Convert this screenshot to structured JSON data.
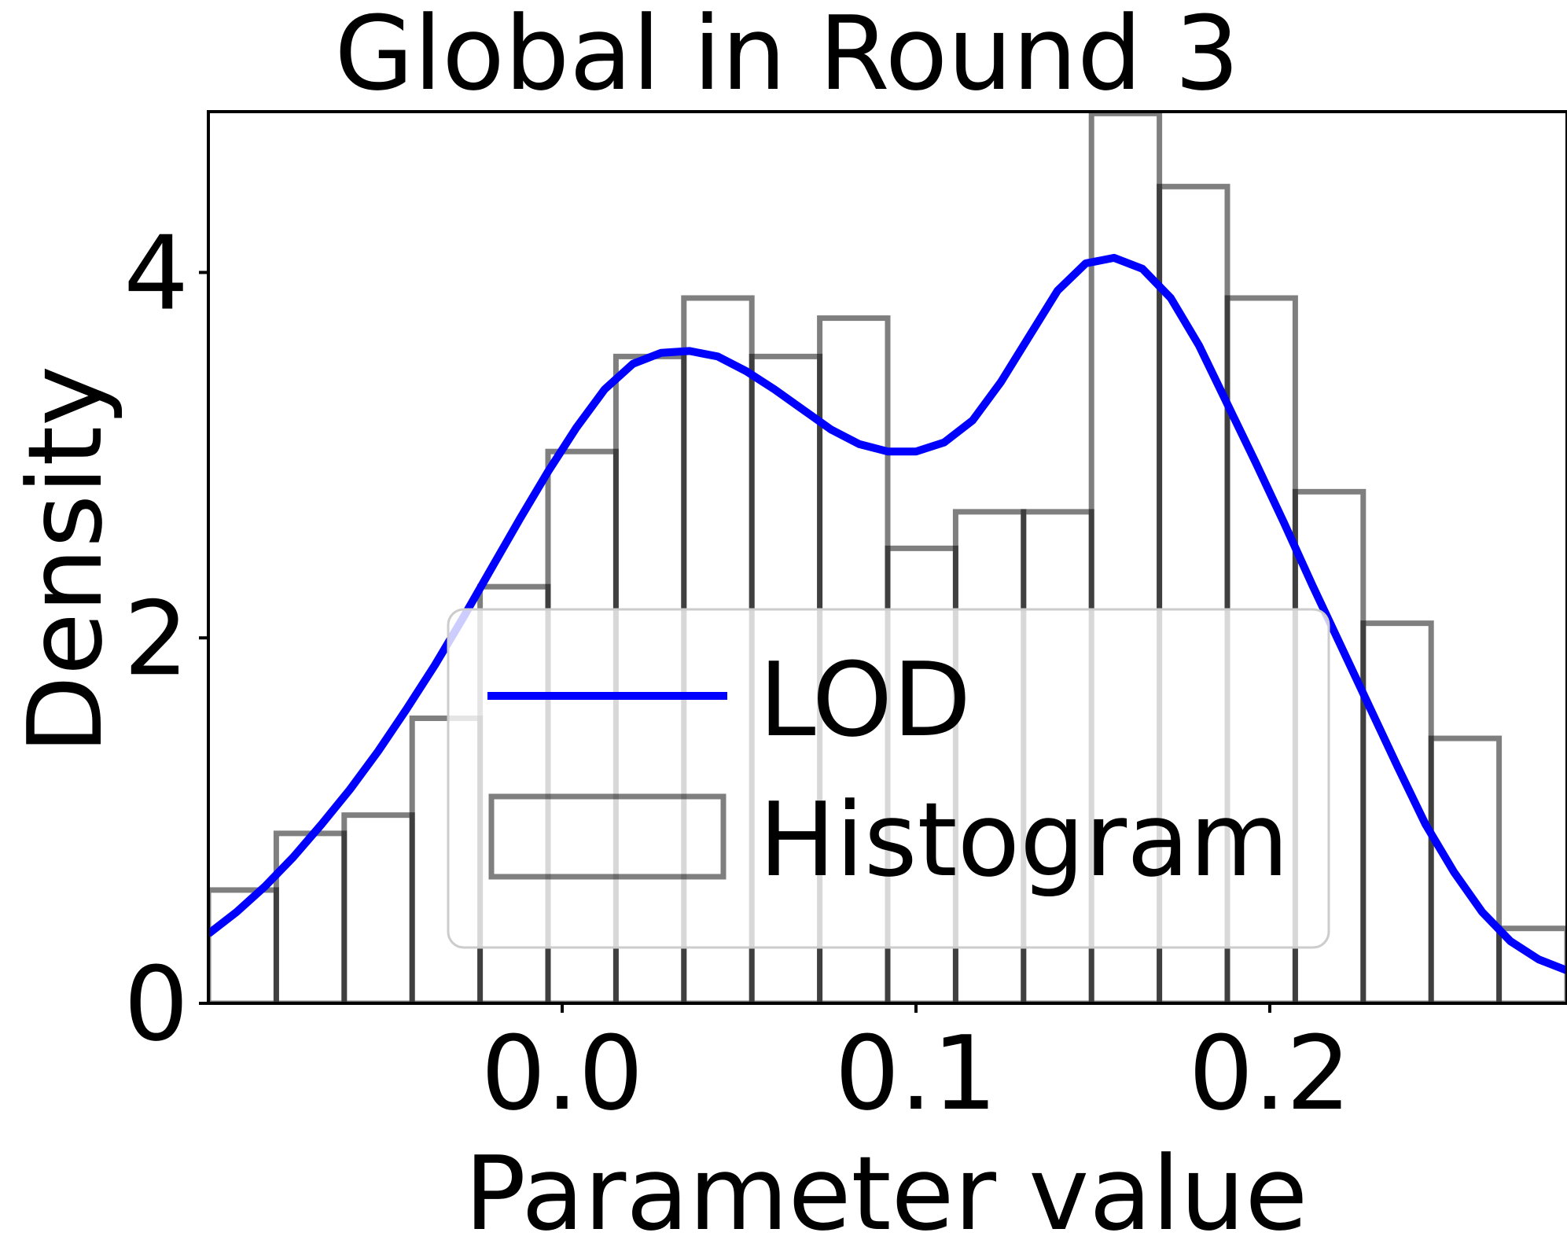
{
  "chart_data": {
    "type": "bar",
    "title": "Global in Round 3",
    "xlabel": "Parameter value",
    "ylabel": "Density",
    "xlim": [
      -0.1,
      0.284
    ],
    "ylim": [
      0,
      4.88
    ],
    "xticks": [
      0.0,
      0.1,
      0.2
    ],
    "xtick_labels": [
      "0.0",
      "0.1",
      "0.2"
    ],
    "yticks": [
      0,
      2,
      4
    ],
    "ytick_labels": [
      "0",
      "2",
      "4"
    ],
    "grid": false,
    "legend": {
      "placement": "lower-center",
      "entries": [
        "LOD",
        "Histogram"
      ]
    },
    "histogram": {
      "name": "Histogram",
      "bin_edges": [
        -0.1,
        -0.0808,
        -0.0616,
        -0.0424,
        -0.0232,
        -0.004,
        0.0152,
        0.0344,
        0.0536,
        0.0728,
        0.092,
        0.1112,
        0.1304,
        0.1496,
        0.1688,
        0.188,
        0.2072,
        0.2264,
        0.2456,
        0.2648,
        0.284
      ],
      "values": [
        0.62,
        0.93,
        1.03,
        1.56,
        2.28,
        3.02,
        3.54,
        3.86,
        3.54,
        3.75,
        2.49,
        2.69,
        2.69,
        4.87,
        4.47,
        3.86,
        2.8,
        2.08,
        1.45,
        0.41
      ]
    },
    "series": [
      {
        "name": "LOD",
        "type": "line",
        "x": [
          -0.1,
          -0.092,
          -0.084,
          -0.076,
          -0.068,
          -0.06,
          -0.052,
          -0.044,
          -0.036,
          -0.028,
          -0.02,
          -0.012,
          -0.004,
          0.004,
          0.012,
          0.02,
          0.028,
          0.036,
          0.044,
          0.052,
          0.06,
          0.068,
          0.076,
          0.084,
          0.092,
          0.1,
          0.108,
          0.116,
          0.124,
          0.132,
          0.14,
          0.148,
          0.156,
          0.164,
          0.172,
          0.18,
          0.188,
          0.196,
          0.204,
          0.212,
          0.22,
          0.228,
          0.236,
          0.244,
          0.252,
          0.26,
          0.268,
          0.276,
          0.284
        ],
        "y": [
          0.38,
          0.5,
          0.64,
          0.8,
          0.98,
          1.17,
          1.38,
          1.61,
          1.85,
          2.11,
          2.38,
          2.65,
          2.91,
          3.15,
          3.36,
          3.5,
          3.56,
          3.57,
          3.54,
          3.46,
          3.36,
          3.25,
          3.14,
          3.06,
          3.02,
          3.02,
          3.07,
          3.19,
          3.4,
          3.65,
          3.9,
          4.05,
          4.08,
          4.02,
          3.86,
          3.6,
          3.28,
          2.96,
          2.63,
          2.29,
          1.96,
          1.63,
          1.3,
          0.98,
          0.72,
          0.5,
          0.34,
          0.24,
          0.18
        ]
      }
    ],
    "colors": {
      "line": "#0000ff",
      "bar_edge": "#000000",
      "axes": "#000000",
      "legend_border": "#cccccc"
    }
  }
}
